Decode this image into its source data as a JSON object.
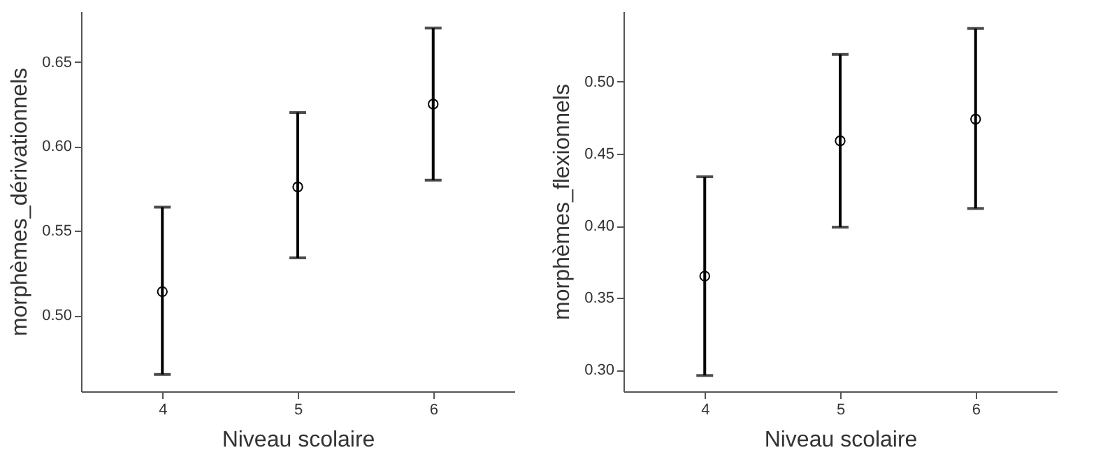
{
  "chart_data": [
    {
      "type": "scatter",
      "categories": [
        "4",
        "5",
        "6"
      ],
      "values": [
        0.514,
        0.576,
        0.625
      ],
      "errors": [
        [
          0.465,
          0.564
        ],
        [
          0.534,
          0.62
        ],
        [
          0.58,
          0.67
        ]
      ],
      "color": "#ffffff",
      "marker": "circle",
      "xlabel": "Niveau scolaire",
      "ylabel": "morphèmes_dérivationnels",
      "ylim": [
        0.455,
        0.68
      ],
      "yticks": [
        {
          "value": 0.5,
          "label": "0.50"
        },
        0.55,
        {
          "value": 0.6,
          "label": "0.60"
        },
        0.65
      ],
      "grid": false
    },
    {
      "type": "scatter",
      "categories": [
        "4",
        "5",
        "6"
      ],
      "values": [
        0.365,
        0.459,
        0.474
      ],
      "errors": [
        [
          0.296,
          0.434
        ],
        [
          0.399,
          0.519
        ],
        [
          0.412,
          0.537
        ]
      ],
      "color": "#ffffff",
      "marker": "circle",
      "xlabel": "Niveau scolaire",
      "ylabel": "morphèmes_flexionnels",
      "ylim": [
        0.285,
        0.549
      ],
      "yticks": [
        {
          "value": 0.3,
          "label": "0.30"
        },
        0.35,
        {
          "value": 0.4,
          "label": "0.40"
        },
        0.45,
        {
          "value": 0.5,
          "label": "0.50"
        }
      ],
      "grid": false
    }
  ]
}
